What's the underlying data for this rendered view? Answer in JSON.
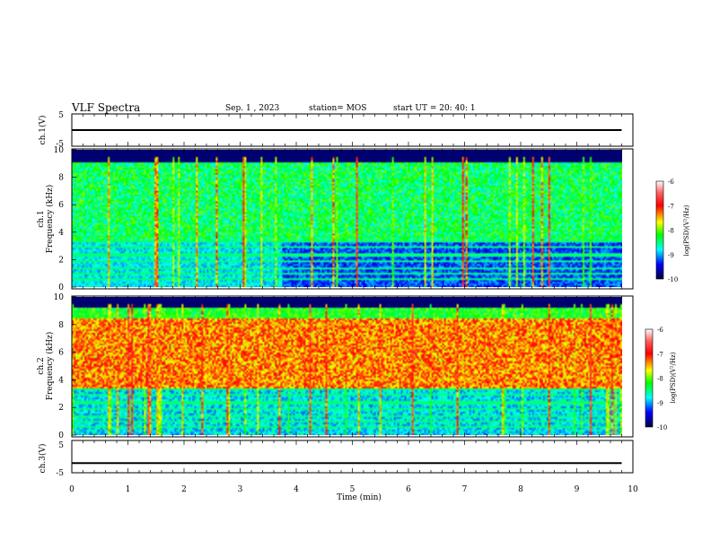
{
  "header": {
    "title": "VLF Spectra",
    "date": "Sep. 1 , 2023",
    "station": "station= MOS",
    "start": "start  UT =   20: 40: 1"
  },
  "chart_data": [
    {
      "type": "line",
      "name": "voltage-top",
      "ylabel": "ch.1(V)",
      "ylim": [
        -5,
        5
      ],
      "yticks": [
        "5",
        "-5"
      ],
      "xlim": [
        0,
        10
      ],
      "series": [
        {
          "x": [
            0,
            9.8
          ],
          "values": [
            0,
            0
          ]
        }
      ]
    },
    {
      "type": "heatmap",
      "name": "spectrogram-ch1",
      "ylabel": "ch.1\nFrequency (kHz)",
      "ylim": [
        0,
        10
      ],
      "yticks": [
        "0",
        "2",
        "4",
        "6",
        "8",
        "10"
      ],
      "xlim": [
        0,
        10
      ],
      "colorbar": {
        "label": "log(PSD)(V²/Hz)",
        "range": [
          -10,
          -6
        ],
        "ticks": [
          "-6",
          "-7",
          "-8",
          "-9",
          "-10"
        ]
      }
    },
    {
      "type": "heatmap",
      "name": "spectrogram-ch2",
      "ylabel": "ch.2\nFrequency (kHz)",
      "ylim": [
        0,
        10
      ],
      "yticks": [
        "0",
        "2",
        "4",
        "6",
        "8",
        "10"
      ],
      "xlim": [
        0,
        10
      ],
      "colorbar": {
        "label": "log(PSD)(V²/Hz)",
        "range": [
          -10,
          -6
        ],
        "ticks": [
          "-6",
          "-7",
          "-8",
          "-9",
          "-10"
        ]
      }
    },
    {
      "type": "line",
      "name": "voltage-bottom",
      "ylabel": "ch.3(V)",
      "ylim": [
        -5,
        5
      ],
      "yticks": [
        "5",
        "-5"
      ],
      "xlim": [
        0,
        10
      ],
      "xlabel": "Time  (min)",
      "xticks": [
        "0",
        "1",
        "2",
        "3",
        "4",
        "5",
        "6",
        "7",
        "8",
        "9",
        "10"
      ],
      "series": [
        {
          "x": [
            0,
            9.8
          ],
          "values": [
            -2,
            -2
          ]
        }
      ]
    }
  ]
}
